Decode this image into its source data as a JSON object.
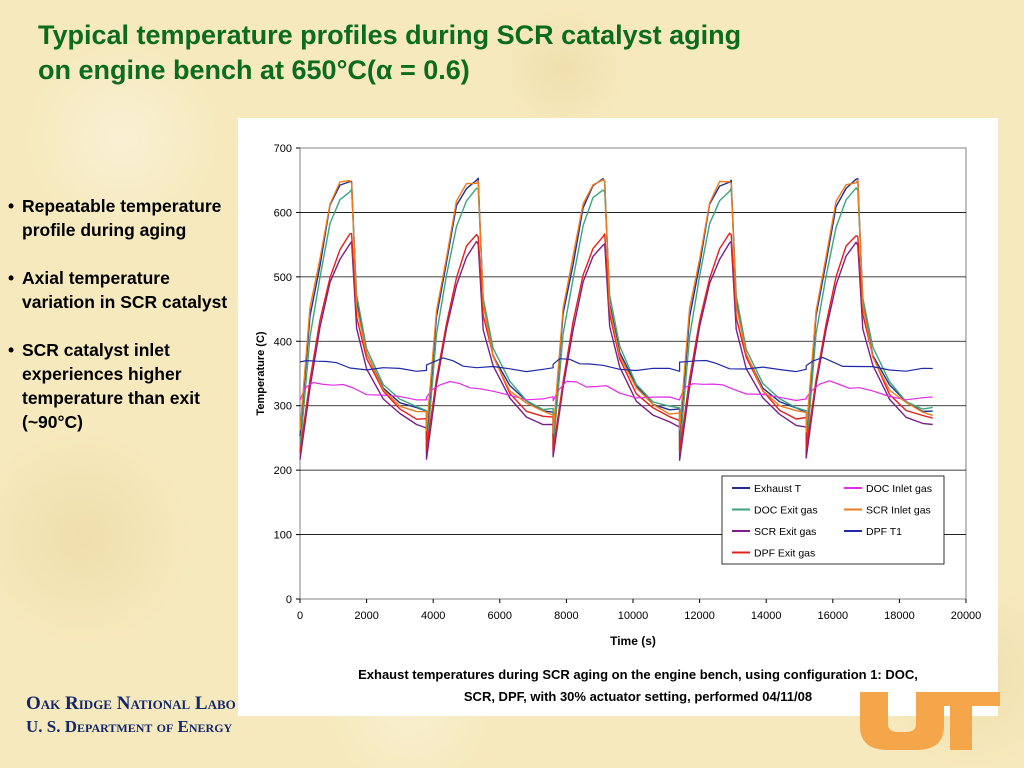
{
  "slide": {
    "title_line1": "Typical temperature profiles during SCR catalyst aging",
    "title_line2": "on engine bench at 650°C(α = 0.6)",
    "bullets": [
      {
        "marker": "•",
        "text": "Repeatable temperature profile during aging"
      },
      {
        "marker": "•",
        "text": " Axial temperature variation in SCR catalyst"
      },
      {
        "marker": "•",
        "text": "SCR catalyst inlet experiences higher temperature than exit (~90°C)"
      }
    ],
    "caption_line1": "Exhaust temperatures during SCR aging on the engine bench, using configuration 1: DOC,",
    "caption_line2": "SCR, DPF, with 30% actuator setting, performed 04/11/08",
    "footer_line1": "Oak Ridge National Laboratory",
    "footer_line2": "U. S. Department of Energy",
    "logo": {
      "name": "ut-logo",
      "color": "#f5a54a"
    }
  },
  "chart_data": {
    "type": "line",
    "xlabel": "Time (s)",
    "ylabel": "Temperature (C)",
    "xlim": [
      0,
      20000
    ],
    "ylim": [
      0,
      700
    ],
    "xticks": [
      0,
      2000,
      4000,
      6000,
      8000,
      10000,
      12000,
      14000,
      16000,
      18000,
      20000
    ],
    "yticks": [
      0,
      100,
      200,
      300,
      400,
      500,
      600,
      700
    ],
    "grid": "horizontal",
    "legend_position": "lower-right",
    "cycle_starts_s": [
      0,
      3800,
      7600,
      11400,
      15200
    ],
    "series": [
      {
        "name": "Exhaust T",
        "color": "#1f2f8f",
        "width": 1.4,
        "points": [
          [
            0,
            250
          ],
          [
            300,
            440
          ],
          [
            600,
            520
          ],
          [
            900,
            610
          ],
          [
            1200,
            640
          ],
          [
            1500,
            650
          ],
          [
            1550,
            650
          ],
          [
            1700,
            460
          ],
          [
            2000,
            380
          ],
          [
            2500,
            330
          ],
          [
            3000,
            305
          ],
          [
            3500,
            294
          ],
          [
            3800,
            292
          ]
        ]
      },
      {
        "name": "DOC Exit gas",
        "color": "#3aa67a",
        "width": 1.4,
        "points": [
          [
            0,
            230
          ],
          [
            300,
            410
          ],
          [
            600,
            500
          ],
          [
            900,
            580
          ],
          [
            1200,
            620
          ],
          [
            1500,
            635
          ],
          [
            1550,
            635
          ],
          [
            1700,
            470
          ],
          [
            2000,
            390
          ],
          [
            2500,
            335
          ],
          [
            3000,
            308
          ],
          [
            3500,
            297
          ],
          [
            3800,
            295
          ]
        ]
      },
      {
        "name": "SCR Exit gas",
        "color": "#7a1f8a",
        "width": 1.4,
        "points": [
          [
            0,
            218
          ],
          [
            300,
            330
          ],
          [
            600,
            420
          ],
          [
            900,
            490
          ],
          [
            1200,
            530
          ],
          [
            1500,
            552
          ],
          [
            1550,
            552
          ],
          [
            1700,
            420
          ],
          [
            2000,
            360
          ],
          [
            2500,
            310
          ],
          [
            3000,
            285
          ],
          [
            3500,
            272
          ],
          [
            3800,
            268
          ]
        ]
      },
      {
        "name": "DPF Exit gas",
        "color": "#e3201b",
        "width": 1.4,
        "points": [
          [
            0,
            230
          ],
          [
            300,
            340
          ],
          [
            600,
            430
          ],
          [
            900,
            500
          ],
          [
            1200,
            545
          ],
          [
            1500,
            565
          ],
          [
            1550,
            565
          ],
          [
            1700,
            440
          ],
          [
            2000,
            375
          ],
          [
            2500,
            320
          ],
          [
            3000,
            294
          ],
          [
            3500,
            282
          ],
          [
            3800,
            280
          ]
        ]
      },
      {
        "name": "DOC Inlet gas",
        "color": "#e62be6",
        "width": 1.2,
        "points": [
          [
            0,
            310
          ],
          [
            150,
            325
          ],
          [
            400,
            335
          ],
          [
            700,
            336
          ],
          [
            1000,
            332
          ],
          [
            1300,
            330
          ],
          [
            1600,
            328
          ],
          [
            2000,
            320
          ],
          [
            2500,
            315
          ],
          [
            3000,
            312
          ],
          [
            3500,
            311
          ],
          [
            3800,
            311
          ]
        ]
      },
      {
        "name": "SCR Inlet gas",
        "color": "#f07b1d",
        "width": 1.4,
        "points": [
          [
            0,
            260
          ],
          [
            300,
            450
          ],
          [
            600,
            530
          ],
          [
            900,
            615
          ],
          [
            1200,
            645
          ],
          [
            1500,
            648
          ],
          [
            1550,
            648
          ],
          [
            1700,
            455
          ],
          [
            2000,
            378
          ],
          [
            2500,
            325
          ],
          [
            3000,
            302
          ],
          [
            3500,
            290
          ],
          [
            3800,
            288
          ]
        ]
      },
      {
        "name": "DPF T1",
        "color": "#1e2aa8",
        "width": 1.2,
        "points": [
          [
            0,
            365
          ],
          [
            200,
            370
          ],
          [
            500,
            372
          ],
          [
            800,
            368
          ],
          [
            1100,
            364
          ],
          [
            1500,
            360
          ],
          [
            2000,
            358
          ],
          [
            2500,
            357
          ],
          [
            3000,
            356
          ],
          [
            3500,
            356
          ],
          [
            3800,
            356
          ]
        ]
      }
    ]
  }
}
